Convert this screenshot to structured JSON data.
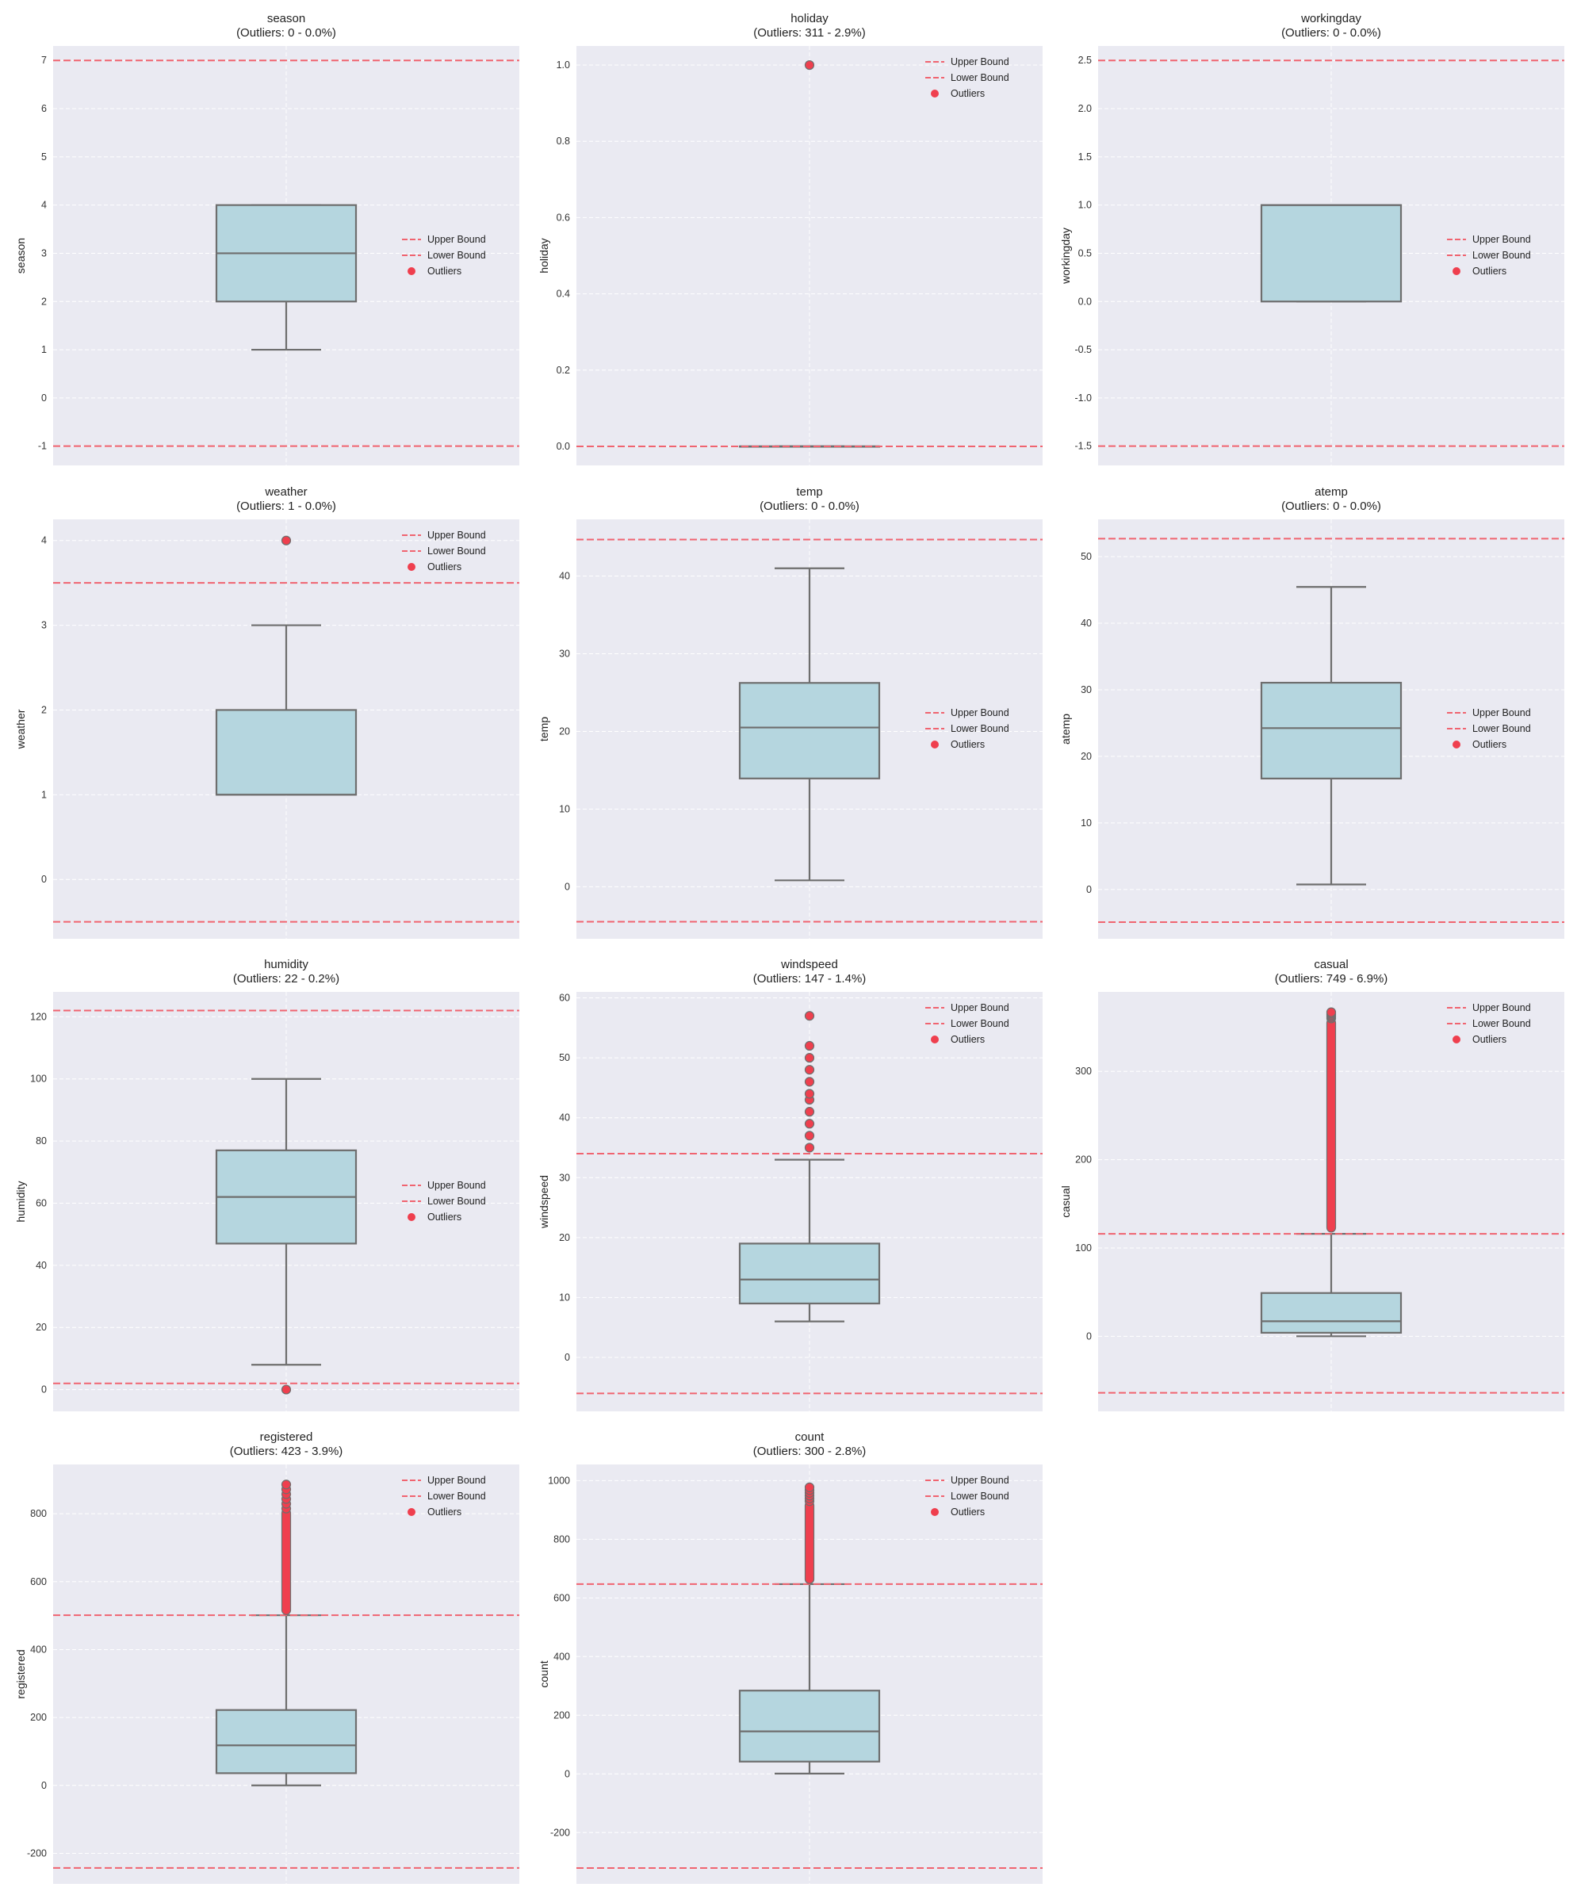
{
  "colors": {
    "panel_bg": "#eaeaf2",
    "grid": "#ffffff",
    "box_fill": "#b5d6df",
    "box_edge": "#6e6e6e",
    "bound_line": "#f06470",
    "outlier": "#ef3f4e"
  },
  "legend_labels": [
    "Upper Bound",
    "Lower Bound",
    "Outliers"
  ],
  "chart_data": [
    {
      "type": "box",
      "title": "season",
      "subtitle": "(Outliers: 0 - 0.0%)",
      "ylabel": "season",
      "ylim": [
        -1.4,
        7.3
      ],
      "yticks": [
        -1,
        0,
        1,
        2,
        3,
        4,
        5,
        6,
        7
      ],
      "ytick_labels": [
        "-1",
        "0",
        "1",
        "2",
        "3",
        "4",
        "5",
        "6",
        "7"
      ],
      "box": {
        "whisker_low": 1,
        "q1": 2,
        "median": 3,
        "q3": 4,
        "whisker_high": 4
      },
      "upper_bound": 7,
      "lower_bound": -1,
      "outliers": [],
      "legend": "center-right"
    },
    {
      "type": "box",
      "title": "holiday",
      "subtitle": "(Outliers: 311 - 2.9%)",
      "ylabel": "holiday",
      "ylim": [
        -0.05,
        1.05
      ],
      "yticks": [
        0,
        0.2,
        0.4,
        0.6,
        0.8,
        1.0
      ],
      "ytick_labels": [
        "0.0",
        "0.2",
        "0.4",
        "0.6",
        "0.8",
        "1.0"
      ],
      "box": {
        "whisker_low": 0,
        "q1": 0,
        "median": 0,
        "q3": 0,
        "whisker_high": 0
      },
      "upper_bound": 0,
      "lower_bound": 0,
      "outliers": [
        1.0
      ],
      "legend": "top-right"
    },
    {
      "type": "box",
      "title": "workingday",
      "subtitle": "(Outliers: 0 - 0.0%)",
      "ylabel": "workingday",
      "ylim": [
        -1.7,
        2.65
      ],
      "yticks": [
        -1.5,
        -1.0,
        -0.5,
        0.0,
        0.5,
        1.0,
        1.5,
        2.0,
        2.5
      ],
      "ytick_labels": [
        "-1.5",
        "-1.0",
        "-0.5",
        "0.0",
        "0.5",
        "1.0",
        "1.5",
        "2.0",
        "2.5"
      ],
      "box": {
        "whisker_low": 0,
        "q1": 0,
        "median": 1,
        "q3": 1,
        "whisker_high": 1
      },
      "upper_bound": 2.5,
      "lower_bound": -1.5,
      "outliers": [],
      "legend": "center-right"
    },
    {
      "type": "box",
      "title": "weather",
      "subtitle": "(Outliers: 1 - 0.0%)",
      "ylabel": "weather",
      "ylim": [
        -0.7,
        4.25
      ],
      "yticks": [
        0,
        1,
        2,
        3,
        4
      ],
      "ytick_labels": [
        "0",
        "1",
        "2",
        "3",
        "4"
      ],
      "box": {
        "whisker_low": 1,
        "q1": 1,
        "median": 1,
        "q3": 2,
        "whisker_high": 3
      },
      "upper_bound": 3.5,
      "lower_bound": -0.5,
      "outliers": [
        4
      ],
      "legend": "top-right"
    },
    {
      "type": "box",
      "title": "temp",
      "subtitle": "(Outliers: 0 - 0.0%)",
      "ylabel": "temp",
      "ylim": [
        -6.7,
        47.3
      ],
      "yticks": [
        0,
        10,
        20,
        30,
        40
      ],
      "ytick_labels": [
        "0",
        "10",
        "20",
        "30",
        "40"
      ],
      "box": {
        "whisker_low": 0.82,
        "q1": 13.94,
        "median": 20.5,
        "q3": 26.24,
        "whisker_high": 41
      },
      "upper_bound": 44.7,
      "lower_bound": -4.5,
      "outliers": [],
      "legend": "center-right"
    },
    {
      "type": "box",
      "title": "atemp",
      "subtitle": "(Outliers: 0 - 0.0%)",
      "ylabel": "atemp",
      "ylim": [
        -7.4,
        55.6
      ],
      "yticks": [
        0,
        10,
        20,
        30,
        40,
        50
      ],
      "ytick_labels": [
        "0",
        "10",
        "20",
        "30",
        "40",
        "50"
      ],
      "box": {
        "whisker_low": 0.76,
        "q1": 16.67,
        "median": 24.24,
        "q3": 31.06,
        "whisker_high": 45.45
      },
      "upper_bound": 52.7,
      "lower_bound": -4.9,
      "outliers": [],
      "legend": "center-right"
    },
    {
      "type": "box",
      "title": "humidity",
      "subtitle": "(Outliers: 22 - 0.2%)",
      "ylabel": "humidity",
      "ylim": [
        -7,
        128
      ],
      "yticks": [
        0,
        20,
        40,
        60,
        80,
        100,
        120
      ],
      "ytick_labels": [
        "0",
        "20",
        "40",
        "60",
        "80",
        "100",
        "120"
      ],
      "box": {
        "whisker_low": 8,
        "q1": 47,
        "median": 62,
        "q3": 77,
        "whisker_high": 100
      },
      "upper_bound": 122,
      "lower_bound": 2,
      "outliers": [
        0
      ],
      "legend": "center-right"
    },
    {
      "type": "box",
      "title": "windspeed",
      "subtitle": "(Outliers: 147 - 1.4%)",
      "ylabel": "windspeed",
      "ylim": [
        -9,
        61
      ],
      "yticks": [
        0,
        10,
        20,
        30,
        40,
        50,
        60
      ],
      "ytick_labels": [
        "0",
        "10",
        "20",
        "30",
        "40",
        "50",
        "60"
      ],
      "box": {
        "whisker_low": 6,
        "q1": 9,
        "median": 13,
        "q3": 19,
        "whisker_high": 33
      },
      "upper_bound": 34,
      "lower_bound": -6,
      "outliers": [
        35,
        37,
        39,
        41,
        43,
        44,
        46,
        48,
        50,
        52,
        57
      ],
      "legend": "top-right"
    },
    {
      "type": "box",
      "title": "casual",
      "subtitle": "(Outliers: 749 - 6.9%)",
      "ylabel": "casual",
      "ylim": [
        -85,
        390
      ],
      "yticks": [
        0,
        100,
        200,
        300
      ],
      "ytick_labels": [
        "0",
        "100",
        "200",
        "300"
      ],
      "box": {
        "whisker_low": 0,
        "q1": 4,
        "median": 17,
        "q3": 49,
        "whisker_high": 116
      },
      "upper_bound": 116,
      "lower_bound": -64,
      "outliers": {
        "dense_from": 118,
        "dense_to": 360,
        "max": 367
      },
      "legend": "top-right"
    },
    {
      "type": "box",
      "title": "registered",
      "subtitle": "(Outliers: 423 - 3.9%)",
      "ylabel": "registered",
      "ylim": [
        -290,
        945
      ],
      "yticks": [
        -200,
        0,
        200,
        400,
        600,
        800
      ],
      "ytick_labels": [
        "-200",
        "0",
        "200",
        "400",
        "600",
        "800"
      ],
      "box": {
        "whisker_low": 0,
        "q1": 36,
        "median": 118,
        "q3": 222,
        "whisker_high": 501
      },
      "upper_bound": 501,
      "lower_bound": -243,
      "outliers": {
        "dense_from": 503,
        "dense_to": 815,
        "max": 886
      },
      "legend": "top-right"
    },
    {
      "type": "box",
      "title": "count",
      "subtitle": "(Outliers: 300 - 2.8%)",
      "ylabel": "count",
      "ylim": [
        -375,
        1055
      ],
      "yticks": [
        -200,
        0,
        200,
        400,
        600,
        800,
        1000
      ],
      "ytick_labels": [
        "-200",
        "0",
        "200",
        "400",
        "600",
        "800",
        "1000"
      ],
      "box": {
        "whisker_low": 1,
        "q1": 42,
        "median": 145,
        "q3": 284,
        "whisker_high": 647
      },
      "upper_bound": 647,
      "lower_bound": -321,
      "outliers": {
        "dense_from": 649,
        "dense_to": 930,
        "max": 977
      },
      "legend": "top-right"
    }
  ]
}
